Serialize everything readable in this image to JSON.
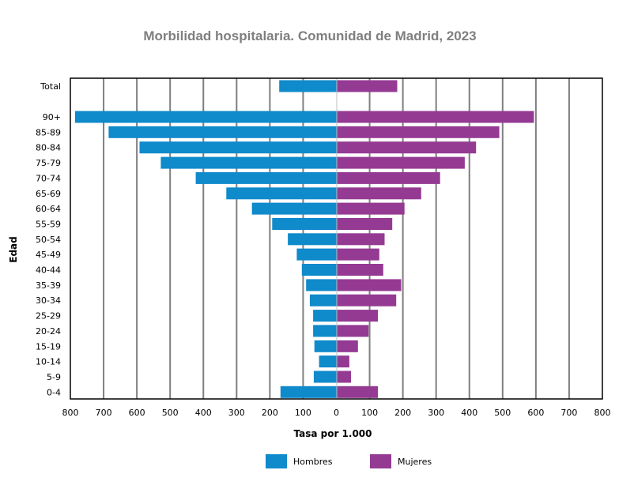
{
  "chart_data": {
    "type": "bar",
    "orientation": "horizontal-population-pyramid",
    "title": "Morbilidad hospitalaria. Comunidad de Madrid, 2023",
    "xlabel": "Tasa por 1.000",
    "ylabel": "Edad",
    "xlim": [
      -800,
      800
    ],
    "xticks": [
      "800",
      "700",
      "600",
      "500",
      "400",
      "300",
      "200",
      "100",
      "0",
      "100",
      "200",
      "300",
      "400",
      "500",
      "600",
      "700",
      "800"
    ],
    "grid": true,
    "legend_position": "bottom",
    "categories": [
      "Total",
      "90+",
      "85-89",
      "80-84",
      "75-79",
      "70-74",
      "65-69",
      "60-64",
      "55-59",
      "50-54",
      "45-49",
      "40-44",
      "35-39",
      "30-34",
      "25-29",
      "20-24",
      "15-19",
      "10-14",
      "5-9",
      "0-4"
    ],
    "series": [
      {
        "name": "Hombres",
        "color": "#0f8acb",
        "side": "left",
        "values": [
          172,
          786,
          685,
          592,
          528,
          423,
          331,
          254,
          193,
          146,
          119,
          104,
          91,
          80,
          70,
          70,
          66,
          52,
          68,
          168
        ]
      },
      {
        "name": "Mujeres",
        "color": "#943a93",
        "side": "right",
        "values": [
          183,
          594,
          490,
          420,
          386,
          312,
          255,
          205,
          168,
          145,
          129,
          141,
          195,
          180,
          125,
          97,
          65,
          39,
          44,
          125
        ]
      }
    ]
  }
}
